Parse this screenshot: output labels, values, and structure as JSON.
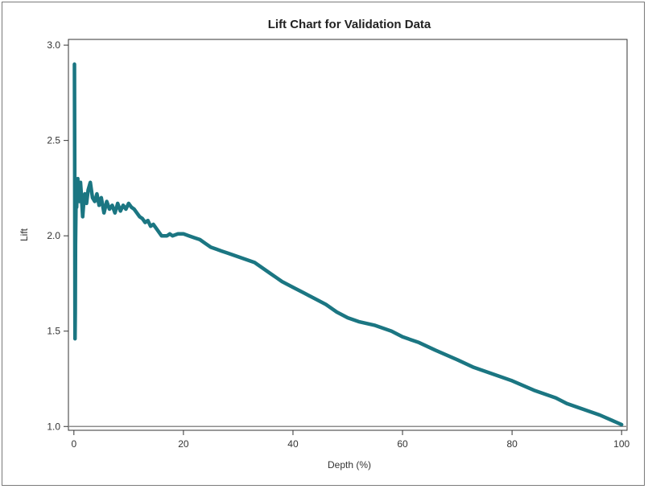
{
  "chart_data": {
    "type": "line",
    "title": "Lift Chart for Validation Data",
    "xlabel": "Depth (%)",
    "ylabel": "Lift",
    "xlim": [
      -1,
      101
    ],
    "ylim": [
      0.98,
      3.03
    ],
    "x_ticks": [
      0,
      20,
      40,
      60,
      80,
      100
    ],
    "x_tick_labels": [
      "0",
      "20",
      "40",
      "60",
      "80",
      "100"
    ],
    "y_ticks": [
      1.0,
      1.5,
      2.0,
      2.5,
      3.0
    ],
    "y_tick_labels": [
      "1.0",
      "1.5",
      "2.0",
      "2.5",
      "3.0"
    ],
    "grid": false,
    "legend": "none",
    "reference_line": {
      "y": 1.0,
      "color": "#8c8c8c"
    },
    "series": [
      {
        "color": "#1b7682",
        "x": [
          0.1,
          0.15,
          0.2,
          0.25,
          0.3,
          0.4,
          0.5,
          0.6,
          0.7,
          0.8,
          1.0,
          1.2,
          1.4,
          1.6,
          1.8,
          2.0,
          2.3,
          2.6,
          3.0,
          3.4,
          3.8,
          4.2,
          4.6,
          5.0,
          5.5,
          6.0,
          6.5,
          7.0,
          7.5,
          8.0,
          8.5,
          9.0,
          9.5,
          10.0,
          10.5,
          11.0,
          11.5,
          12.0,
          12.5,
          13.0,
          13.5,
          14.0,
          14.5,
          15.0,
          15.5,
          16.0,
          16.5,
          17.0,
          17.5,
          18.0,
          19.0,
          20.0,
          21.0,
          22.0,
          23.0,
          24.0,
          25.0,
          26.0,
          27.0,
          28.0,
          29.0,
          30.0,
          31.0,
          32.0,
          33.0,
          34.0,
          35.0,
          36.0,
          37.0,
          38.0,
          40.0,
          42.0,
          44.0,
          46.0,
          48.0,
          50.0,
          52.0,
          55.0,
          58.0,
          60.0,
          63.0,
          66.0,
          70.0,
          73.0,
          76.0,
          80.0,
          84.0,
          88.0,
          90.0,
          93.0,
          96.0,
          100.0
        ],
        "y": [
          2.9,
          2.4,
          1.46,
          1.6,
          1.95,
          2.2,
          2.15,
          2.25,
          2.3,
          2.22,
          2.18,
          2.28,
          2.2,
          2.1,
          2.18,
          2.22,
          2.17,
          2.24,
          2.28,
          2.2,
          2.18,
          2.22,
          2.16,
          2.2,
          2.12,
          2.18,
          2.14,
          2.16,
          2.12,
          2.17,
          2.13,
          2.16,
          2.14,
          2.17,
          2.15,
          2.14,
          2.12,
          2.1,
          2.09,
          2.07,
          2.08,
          2.05,
          2.06,
          2.04,
          2.02,
          2.0,
          2.0,
          2.0,
          2.01,
          2.0,
          2.01,
          2.01,
          2.0,
          1.99,
          1.98,
          1.96,
          1.94,
          1.93,
          1.92,
          1.91,
          1.9,
          1.89,
          1.88,
          1.87,
          1.86,
          1.84,
          1.82,
          1.8,
          1.78,
          1.76,
          1.73,
          1.7,
          1.67,
          1.64,
          1.6,
          1.57,
          1.55,
          1.53,
          1.5,
          1.47,
          1.44,
          1.4,
          1.35,
          1.31,
          1.28,
          1.24,
          1.19,
          1.15,
          1.12,
          1.09,
          1.06,
          1.01
        ]
      }
    ]
  }
}
